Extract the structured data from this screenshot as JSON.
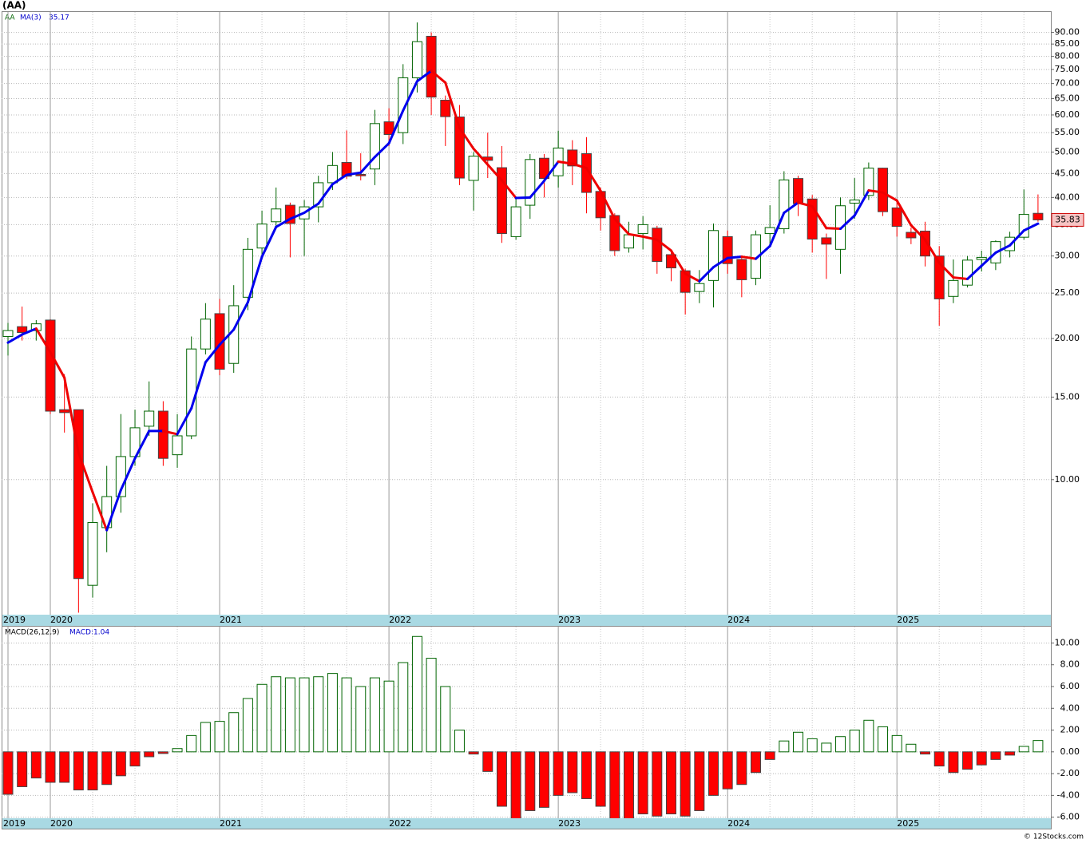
{
  "chart_data": [
    {
      "type": "candlestick",
      "title": "(AA)",
      "symbol": "AA",
      "ma_name": "MA(3)",
      "categories": [
        "2019",
        null,
        null,
        "2020",
        null,
        null,
        null,
        null,
        null,
        null,
        null,
        null,
        null,
        null,
        null,
        "2021",
        null,
        null,
        null,
        null,
        null,
        null,
        null,
        null,
        null,
        null,
        null,
        "2022",
        null,
        null,
        null,
        null,
        null,
        null,
        null,
        null,
        null,
        null,
        null,
        "2023",
        null,
        null,
        null,
        null,
        null,
        null,
        null,
        null,
        null,
        null,
        null,
        "2024",
        null,
        null,
        null,
        null,
        null,
        null,
        null,
        null,
        null,
        null,
        null,
        "2025",
        null,
        null,
        null,
        null,
        null,
        null,
        null,
        null,
        null,
        null
      ],
      "open": [
        20.2,
        21.2,
        20.8,
        21.9,
        14.1,
        14.1,
        5.95,
        7.9,
        9.2,
        11.2,
        13.0,
        14.0,
        11.3,
        12.4,
        19.0,
        22.6,
        17.7,
        24.5,
        31.2,
        35.5,
        38.5,
        36.0,
        38.2,
        43.0,
        47.5,
        44.8,
        46.0,
        58.0,
        55.0,
        72.0,
        88.3,
        64.5,
        59.4,
        43.5,
        48.8,
        46.3,
        33.0,
        38.5,
        48.5,
        44.5,
        50.5,
        49.6,
        41.2,
        36.6,
        31.2,
        33.5,
        34.4,
        30.2,
        27.9,
        25.2,
        26.6,
        33.0,
        29.5,
        26.9,
        33.5,
        34.3,
        43.9,
        39.7,
        32.8,
        31.0,
        38.9,
        40.4,
        46.2,
        38.0,
        33.7,
        33.9,
        30.0,
        24.6,
        26.0,
        29.5,
        29.0,
        30.8,
        32.9,
        37.0
      ],
      "high": [
        21.6,
        23.4,
        21.9,
        22.0,
        16.8,
        14.1,
        8.9,
        10.7,
        13.8,
        14.1,
        16.2,
        14.7,
        13.8,
        20.2,
        23.8,
        24.3,
        26.0,
        32.8,
        37.5,
        42.0,
        39.0,
        39.5,
        44.5,
        50.0,
        55.6,
        49.7,
        61.5,
        62.0,
        77.0,
        94.5,
        90.0,
        66.0,
        63.0,
        50.0,
        55.0,
        51.5,
        40.0,
        49.5,
        49.5,
        55.5,
        53.0,
        53.8,
        42.0,
        37.0,
        35.5,
        36.5,
        34.8,
        30.5,
        28.2,
        28.0,
        35.2,
        34.0,
        30.0,
        34.0,
        38.5,
        45.5,
        44.5,
        40.5,
        33.5,
        40.0,
        44.0,
        47.5,
        46.3,
        39.5,
        34.5,
        35.5,
        31.5,
        29.5,
        30.0,
        30.8,
        32.4,
        33.8,
        41.6,
        40.6
      ],
      "low": [
        18.4,
        19.8,
        19.8,
        13.8,
        12.6,
        5.2,
        5.6,
        7.0,
        8.5,
        10.7,
        12.4,
        10.7,
        10.6,
        12.2,
        18.5,
        16.7,
        16.9,
        23.0,
        30.0,
        34.3,
        29.8,
        30.0,
        35.4,
        41.5,
        43.8,
        43.5,
        42.5,
        51.5,
        52.0,
        67.0,
        60.0,
        51.5,
        42.5,
        37.5,
        44.0,
        32.0,
        32.5,
        36.0,
        40.0,
        42.0,
        42.5,
        37.0,
        34.0,
        30.0,
        30.5,
        31.0,
        27.5,
        26.5,
        22.5,
        23.8,
        23.3,
        27.5,
        24.5,
        26.0,
        31.5,
        33.5,
        36.5,
        30.5,
        26.8,
        27.5,
        36.0,
        39.5,
        36.5,
        33.0,
        31.8,
        28.5,
        21.3,
        23.8,
        25.7,
        27.8,
        28.0,
        29.8,
        32.5,
        35.5
      ],
      "close": [
        20.8,
        20.6,
        21.5,
        14.0,
        13.9,
        6.15,
        8.1,
        9.2,
        11.2,
        12.9,
        14.0,
        11.1,
        12.4,
        19.0,
        22.0,
        17.2,
        23.5,
        31.0,
        35.1,
        37.8,
        35.2,
        38.2,
        43.0,
        46.8,
        44.4,
        44.5,
        57.5,
        54.5,
        72.0,
        86.0,
        65.5,
        59.5,
        44.0,
        49.0,
        48.0,
        33.5,
        38.2,
        48.2,
        43.9,
        51.0,
        46.7,
        41.0,
        36.2,
        30.8,
        33.3,
        35.0,
        29.2,
        28.3,
        25.1,
        26.2,
        34.0,
        28.9,
        26.7,
        33.3,
        34.5,
        43.6,
        38.8,
        32.6,
        31.8,
        38.4,
        39.5,
        46.2,
        37.3,
        34.7,
        32.8,
        30.0,
        24.3,
        26.6,
        29.4,
        29.8,
        32.2,
        32.9,
        36.8,
        35.83
      ],
      "ma": [
        19.6,
        20.4,
        21.0,
        18.7,
        16.5,
        11.4,
        9.4,
        7.8,
        9.5,
        11.1,
        12.7,
        12.7,
        12.5,
        14.2,
        17.8,
        19.4,
        20.9,
        23.9,
        29.9,
        34.6,
        36.0,
        37.1,
        38.8,
        42.7,
        44.7,
        45.2,
        48.8,
        52.2,
        61.3,
        70.8,
        74.5,
        70.3,
        56.3,
        50.8,
        47.0,
        43.5,
        39.9,
        40.0,
        43.4,
        47.7,
        47.2,
        46.2,
        41.3,
        36.0,
        33.4,
        33.0,
        32.5,
        30.8,
        27.5,
        26.5,
        28.4,
        29.7,
        29.9,
        29.6,
        31.5,
        37.1,
        39.0,
        38.3,
        34.4,
        34.3,
        36.6,
        41.4,
        41.0,
        39.4,
        34.9,
        32.5,
        29.0,
        27.0,
        26.8,
        28.6,
        30.5,
        31.6,
        34.0,
        35.17
      ],
      "ylim": [
        5.15,
        99.5
      ],
      "yticks": [
        {
          "value": 10,
          "label": "10.00"
        },
        {
          "value": 15,
          "label": "15.00"
        },
        {
          "value": 20,
          "label": "20.00"
        },
        {
          "value": 25,
          "label": "25.00"
        },
        {
          "value": 30,
          "label": "30.00"
        },
        {
          "value": 35,
          "label": "35.00"
        },
        {
          "value": 40,
          "label": "40.00"
        },
        {
          "value": 45,
          "label": "45.00"
        },
        {
          "value": 50,
          "label": "50.00"
        },
        {
          "value": 55,
          "label": "55.00"
        },
        {
          "value": 60,
          "label": "60.00"
        },
        {
          "value": 65,
          "label": "65.00"
        },
        {
          "value": 70,
          "label": "70.00"
        },
        {
          "value": 75,
          "label": "75.00"
        },
        {
          "value": 80,
          "label": "80.00"
        },
        {
          "value": 85,
          "label": "85.00"
        },
        {
          "value": 90,
          "label": "90.00"
        }
      ],
      "log_scale": true,
      "grid": true,
      "up_color": "#006400",
      "down_color": "#ff0000",
      "ma_up_color": "#0000ee",
      "ma_down_color": "#ee0000"
    },
    {
      "type": "bar",
      "title": "MACD(26,12,9)",
      "legend": "MACD:1.04",
      "categories": [
        "2019",
        null,
        null,
        "2020",
        null,
        null,
        null,
        null,
        null,
        null,
        null,
        null,
        null,
        null,
        null,
        "2021",
        null,
        null,
        null,
        null,
        null,
        null,
        null,
        null,
        null,
        null,
        null,
        "2022",
        null,
        null,
        null,
        null,
        null,
        null,
        null,
        null,
        null,
        null,
        null,
        "2023",
        null,
        null,
        null,
        null,
        null,
        null,
        null,
        null,
        null,
        null,
        null,
        "2024",
        null,
        null,
        null,
        null,
        null,
        null,
        null,
        null,
        null,
        null,
        null,
        "2025",
        null,
        null,
        null,
        null,
        null,
        null,
        null,
        null,
        null,
        null
      ],
      "values": [
        -3.9,
        -3.2,
        -2.4,
        -2.8,
        -2.8,
        -3.5,
        -3.5,
        -3.0,
        -2.2,
        -1.3,
        -0.45,
        -0.15,
        0.3,
        1.5,
        2.7,
        2.8,
        3.6,
        4.9,
        6.2,
        6.9,
        6.8,
        6.8,
        6.9,
        7.2,
        6.8,
        6.0,
        6.8,
        6.5,
        8.2,
        10.6,
        8.6,
        6.0,
        2.0,
        -0.2,
        -1.8,
        -5.0,
        -6.4,
        -5.4,
        -5.1,
        -4.0,
        -3.75,
        -4.3,
        -5.0,
        -6.3,
        -6.2,
        -5.7,
        -5.9,
        -5.7,
        -5.9,
        -5.4,
        -4.0,
        -3.4,
        -3.0,
        -1.9,
        -0.7,
        1.0,
        1.8,
        1.2,
        0.8,
        1.4,
        2.0,
        2.9,
        2.3,
        1.5,
        0.7,
        -0.2,
        -1.3,
        -1.9,
        -1.6,
        -1.2,
        -0.7,
        -0.3,
        0.5,
        1.04
      ],
      "ylim": [
        -6.1,
        11.5
      ],
      "yticks": [
        {
          "value": -6,
          "label": "-6.00"
        },
        {
          "value": -4,
          "label": "-4.00"
        },
        {
          "value": -2,
          "label": "-2.00"
        },
        {
          "value": 0,
          "label": "0.00"
        },
        {
          "value": 2,
          "label": "2.00"
        },
        {
          "value": 4,
          "label": "4.00"
        },
        {
          "value": 6,
          "label": "6.00"
        },
        {
          "value": 8,
          "label": "8.00"
        },
        {
          "value": 10,
          "label": "10.00"
        }
      ],
      "grid": true,
      "up_color": "#006400",
      "down_color": "#ff0000"
    }
  ],
  "footer": "© 12Stocks.com"
}
